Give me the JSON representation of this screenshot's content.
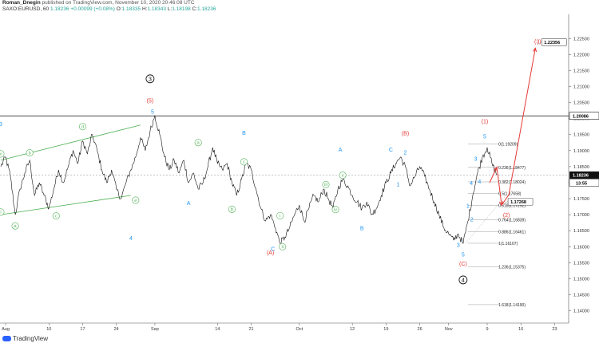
{
  "header": {
    "author": "Roman_Dnegin",
    "published": "published on TradingView.com, November 10, 2020 20:46:08 UTC",
    "symbol": "SAXO:EURUSD, 60",
    "last": "1.18236",
    "change": "+0.00099 (+0.08%)",
    "o_label": "O:",
    "o": "1.18335",
    "h_label": "H:",
    "h": "1.18343",
    "l_label": "L:",
    "l": "1.18198",
    "c_label": "C:",
    "c": "1.18236"
  },
  "footer": {
    "brand": "TradingView"
  },
  "colors": {
    "red": "#e53935",
    "blue": "#2196f3",
    "green": "#4caf50",
    "black": "#000000"
  },
  "chart_data": {
    "type": "line",
    "ylim": [
      1.13615,
      1.23255
    ],
    "y_ticks": [
      "1.22500",
      "1.22000",
      "1.21500",
      "1.21000",
      "1.20500",
      "1.20000",
      "1.19500",
      "1.19000",
      "1.18500",
      "1.18000",
      "1.17500",
      "1.17000",
      "1.16500",
      "1.16000",
      "1.15500",
      "1.15000",
      "1.14500",
      "1.14000"
    ],
    "x_ticks": [
      {
        "label": "Aug",
        "day": 0
      },
      {
        "label": "10",
        "day": 9
      },
      {
        "label": "17",
        "day": 16
      },
      {
        "label": "24",
        "day": 23
      },
      {
        "label": "Sep",
        "day": 31
      },
      {
        "label": "14",
        "day": 44
      },
      {
        "label": "21",
        "day": 51
      },
      {
        "label": "Oct",
        "day": 61
      },
      {
        "label": "12",
        "day": 72
      },
      {
        "label": "19",
        "day": 79
      },
      {
        "label": "26",
        "day": 86
      },
      {
        "label": "Nov",
        "day": 92
      },
      {
        "label": "9",
        "day": 100
      },
      {
        "label": "16",
        "day": 107
      },
      {
        "label": "23",
        "day": 114
      }
    ],
    "price_path": [
      [
        -1,
        1.185
      ],
      [
        0,
        1.188
      ],
      [
        1,
        1.182
      ],
      [
        2,
        1.17
      ],
      [
        3,
        1.178
      ],
      [
        4,
        1.183
      ],
      [
        5,
        1.187
      ],
      [
        6,
        1.176
      ],
      [
        7,
        1.18
      ],
      [
        8,
        1.176
      ],
      [
        9,
        1.172
      ],
      [
        10,
        1.178
      ],
      [
        11,
        1.184
      ],
      [
        12,
        1.18
      ],
      [
        13,
        1.185
      ],
      [
        14,
        1.19
      ],
      [
        15,
        1.186
      ],
      [
        16,
        1.193
      ],
      [
        17,
        1.189
      ],
      [
        18,
        1.195
      ],
      [
        19,
        1.19
      ],
      [
        20,
        1.184
      ],
      [
        21,
        1.18
      ],
      [
        22,
        1.184
      ],
      [
        23,
        1.178
      ],
      [
        24,
        1.175
      ],
      [
        25,
        1.18
      ],
      [
        26,
        1.184
      ],
      [
        27,
        1.188
      ],
      [
        28,
        1.194
      ],
      [
        29,
        1.19
      ],
      [
        30,
        1.196
      ],
      [
        31,
        1.201
      ],
      [
        32,
        1.195
      ],
      [
        33,
        1.188
      ],
      [
        34,
        1.184
      ],
      [
        35,
        1.187
      ],
      [
        36,
        1.183
      ],
      [
        37,
        1.187
      ],
      [
        38,
        1.18
      ],
      [
        39,
        1.183
      ],
      [
        40,
        1.178
      ],
      [
        41,
        1.18
      ],
      [
        42,
        1.185
      ],
      [
        43,
        1.191
      ],
      [
        44,
        1.186
      ],
      [
        45,
        1.184
      ],
      [
        46,
        1.186
      ],
      [
        47,
        1.18
      ],
      [
        48,
        1.176
      ],
      [
        49,
        1.181
      ],
      [
        50,
        1.186
      ],
      [
        51,
        1.184
      ],
      [
        52,
        1.178
      ],
      [
        53,
        1.172
      ],
      [
        54,
        1.168
      ],
      [
        55,
        1.17
      ],
      [
        56,
        1.166
      ],
      [
        57,
        1.161
      ],
      [
        58,
        1.163
      ],
      [
        59,
        1.166
      ],
      [
        60,
        1.17
      ],
      [
        61,
        1.173
      ],
      [
        62,
        1.168
      ],
      [
        63,
        1.172
      ],
      [
        64,
        1.176
      ],
      [
        65,
        1.174
      ],
      [
        66,
        1.178
      ],
      [
        67,
        1.175
      ],
      [
        68,
        1.172
      ],
      [
        69,
        1.178
      ],
      [
        70,
        1.181
      ],
      [
        71,
        1.179
      ],
      [
        72,
        1.176
      ],
      [
        73,
        1.174
      ],
      [
        74,
        1.172
      ],
      [
        75,
        1.174
      ],
      [
        76,
        1.17
      ],
      [
        77,
        1.172
      ],
      [
        78,
        1.176
      ],
      [
        79,
        1.18
      ],
      [
        80,
        1.183
      ],
      [
        81,
        1.186
      ],
      [
        82,
        1.188
      ],
      [
        83,
        1.185
      ],
      [
        84,
        1.179
      ],
      [
        85,
        1.182
      ],
      [
        86,
        1.185
      ],
      [
        87,
        1.182
      ],
      [
        88,
        1.178
      ],
      [
        89,
        1.174
      ],
      [
        90,
        1.17
      ],
      [
        91,
        1.166
      ],
      [
        92,
        1.164
      ],
      [
        93,
        1.162
      ],
      [
        94,
        1.164
      ],
      [
        95,
        1.161
      ],
      [
        96,
        1.168
      ],
      [
        97,
        1.176
      ],
      [
        98,
        1.183
      ],
      [
        99,
        1.188
      ],
      [
        100,
        1.191
      ],
      [
        101,
        1.186
      ],
      [
        102,
        1.1824
      ]
    ],
    "hlines": [
      {
        "price": 1.20086,
        "label": "1.20086",
        "style": "solid"
      },
      {
        "price": 1.18236,
        "label": "1.18236",
        "style": "dashed",
        "tag_dark": true
      },
      {
        "price": 1.17268,
        "label": "1.17268",
        "style": "callout"
      },
      {
        "price": 1.22356,
        "label": "1.22356",
        "style": "callout"
      }
    ],
    "countdown": "13:55",
    "fib_levels": [
      {
        "label": "0(1.19209)",
        "price": 1.19209
      },
      {
        "label": "0.236(1.18477)",
        "price": 1.18477
      },
      {
        "label": "0.382(1.18024)",
        "price": 1.18024
      },
      {
        "label": "0.5(1.17658)",
        "price": 1.17658
      },
      {
        "label": "0.618(1.17292)",
        "price": 1.17292
      },
      {
        "label": "0.764(1.16839)",
        "price": 1.16839
      },
      {
        "label": "0.886(1.16461)",
        "price": 1.16461
      },
      {
        "label": "1(1.16107)",
        "price": 1.16107
      },
      {
        "label": "1.236(1.15375)",
        "price": 1.15375
      },
      {
        "label": "1.618(1.14190)",
        "price": 1.1419
      }
    ],
    "wave_labels": [
      {
        "text": "3",
        "day": 30,
        "price": 1.2118,
        "color": "black",
        "circle": true
      },
      {
        "text": "(5)",
        "day": 30,
        "price": 1.205,
        "color": "red"
      },
      {
        "text": "5",
        "day": 30.5,
        "price": 1.2015,
        "color": "blue"
      },
      {
        "text": "(B)",
        "day": 83,
        "price": 1.1948,
        "color": "red"
      },
      {
        "text": "(1)",
        "day": 99.5,
        "price": 1.1985,
        "color": "red"
      },
      {
        "text": "(3)",
        "day": 110.5,
        "price": 1.2235,
        "color": "red"
      },
      {
        "text": "(2)",
        "day": 104,
        "price": 1.1693,
        "color": "red"
      },
      {
        "text": "(A)",
        "day": 55,
        "price": 1.1576,
        "color": "red"
      },
      {
        "text": "(C)",
        "day": 95,
        "price": 1.1541,
        "color": "red"
      },
      {
        "text": "4",
        "day": 95,
        "price": 1.149,
        "color": "black",
        "circle": true
      },
      {
        "text": "3",
        "day": -1,
        "price": 1.1977,
        "color": "blue"
      },
      {
        "text": "4",
        "day": 26,
        "price": 1.162,
        "color": "blue"
      },
      {
        "text": "B",
        "day": 49.5,
        "price": 1.1949,
        "color": "blue"
      },
      {
        "text": "A",
        "day": 38,
        "price": 1.173,
        "color": "blue"
      },
      {
        "text": "C",
        "day": 55.5,
        "price": 1.1587,
        "color": "blue"
      },
      {
        "text": "A",
        "day": 69.5,
        "price": 1.1897,
        "color": "blue"
      },
      {
        "text": "B",
        "day": 74,
        "price": 1.1652,
        "color": "blue"
      },
      {
        "text": "C",
        "day": 80,
        "price": 1.1897,
        "color": "blue"
      },
      {
        "text": "1",
        "day": 81.5,
        "price": 1.1789,
        "color": "blue"
      },
      {
        "text": "2",
        "day": 83,
        "price": 1.1888,
        "color": "blue"
      },
      {
        "text": "3",
        "day": 94,
        "price": 1.1599,
        "color": "blue"
      },
      {
        "text": "5",
        "day": 95,
        "price": 1.1569,
        "color": "blue"
      },
      {
        "text": "1",
        "day": 96,
        "price": 1.1721,
        "color": "blue"
      },
      {
        "text": "2",
        "day": 96.8,
        "price": 1.1679,
        "color": "blue"
      },
      {
        "text": "3",
        "day": 97.6,
        "price": 1.1868,
        "color": "blue"
      },
      {
        "text": "4",
        "day": 96.7,
        "price": 1.1793,
        "color": "blue"
      },
      {
        "text": "4",
        "day": 98.4,
        "price": 1.1797,
        "color": "blue"
      },
      {
        "text": "5",
        "day": 99.5,
        "price": 1.1938,
        "color": "blue"
      }
    ],
    "green_labels": [
      {
        "text": "v",
        "day": -1,
        "price": 1.189
      },
      {
        "text": "b",
        "day": 5,
        "price": 1.1893
      },
      {
        "text": "d",
        "day": 16,
        "price": 1.1975
      },
      {
        "text": "i",
        "day": -1,
        "price": 1.1708
      },
      {
        "text": "a",
        "day": 2,
        "price": 1.1665
      },
      {
        "text": "c",
        "day": 10.5,
        "price": 1.1696
      },
      {
        "text": "e",
        "day": 27,
        "price": 1.1745
      },
      {
        "text": "a",
        "day": 40,
        "price": 1.1925
      },
      {
        "text": "c",
        "day": 49.5,
        "price": 1.1865
      },
      {
        "text": "b",
        "day": 47,
        "price": 1.1717
      },
      {
        "text": "i",
        "day": 57,
        "price": 1.1697
      },
      {
        "text": "ii",
        "day": 57.5,
        "price": 1.16
      },
      {
        "text": "iii",
        "day": 66.5,
        "price": 1.1794
      },
      {
        "text": "iv",
        "day": 68.5,
        "price": 1.1716
      },
      {
        "text": "v",
        "day": 70,
        "price": 1.1823
      }
    ],
    "trendlines": [
      {
        "from": [
          -1,
          1.187
        ],
        "to": [
          28,
          1.198
        ]
      },
      {
        "from": [
          -1,
          1.17
        ],
        "to": [
          26,
          1.176
        ]
      }
    ],
    "projection": [
      [
        100.5,
        1.18
      ],
      [
        102,
        1.1848
      ],
      [
        103,
        1.173
      ],
      [
        104.5,
        1.1762
      ],
      [
        110,
        1.222
      ]
    ]
  }
}
